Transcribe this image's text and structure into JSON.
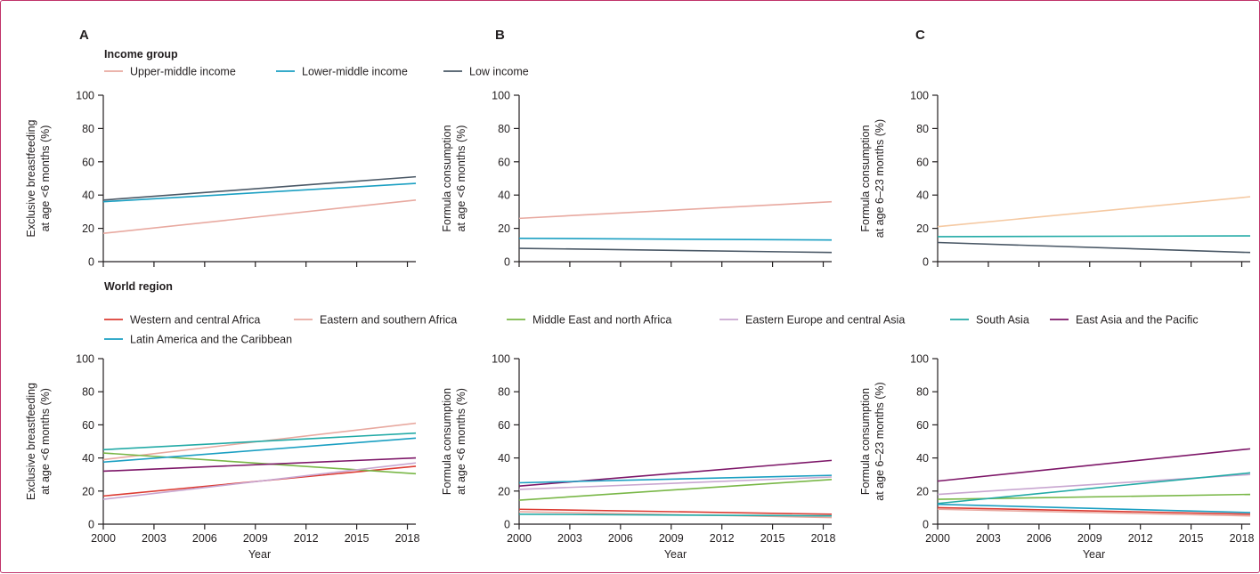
{
  "panel_letters": [
    "A",
    "B",
    "C"
  ],
  "legends": {
    "income": {
      "title": "Income group",
      "items": [
        {
          "label": "Upper-middle income",
          "color": "#e8a9a0"
        },
        {
          "label": "Lower-middle income",
          "color": "#1a9fc2"
        },
        {
          "label": "Low income",
          "color": "#4a5866"
        }
      ]
    },
    "region": {
      "title": "World region",
      "items": [
        {
          "label": "Western and central Africa",
          "color": "#dc3b32"
        },
        {
          "label": "Eastern and southern Africa",
          "color": "#e8a9a0"
        },
        {
          "label": "Middle East and north Africa",
          "color": "#79b747"
        },
        {
          "label": "Eastern Europe and central Asia",
          "color": "#c8a6d0"
        },
        {
          "label": "South Asia",
          "color": "#22aaa6"
        },
        {
          "label": "East Asia and the Pacific",
          "color": "#7d1668"
        },
        {
          "label": "Latin America and the Caribbean",
          "color": "#1a9fc2"
        }
      ]
    }
  },
  "chart_data": [
    {
      "type": "line",
      "panel": "A",
      "row": "income",
      "ylabel": [
        "Exclusive breastfeeding",
        "at age <6 months (%)"
      ],
      "xlabel": "",
      "x": [
        2000,
        2018.5
      ],
      "ylim": [
        0,
        100
      ],
      "yticks": [
        0,
        20,
        40,
        60,
        80,
        100
      ],
      "xticks": [
        2000,
        2003,
        2006,
        2009,
        2012,
        2015,
        2018
      ],
      "show_xtick_labels": false,
      "series": [
        {
          "name": "Upper-middle income",
          "color": "#e8a9a0",
          "values": [
            17,
            37
          ]
        },
        {
          "name": "Lower-middle income",
          "color": "#1a9fc2",
          "values": [
            36,
            47
          ]
        },
        {
          "name": "Low income",
          "color": "#4a5866",
          "values": [
            37,
            51
          ]
        }
      ]
    },
    {
      "type": "line",
      "panel": "B",
      "row": "income",
      "ylabel": [
        "Formula consumption",
        "at age <6 months (%)"
      ],
      "xlabel": "",
      "x": [
        2000,
        2018.5
      ],
      "ylim": [
        0,
        100
      ],
      "yticks": [
        0,
        20,
        40,
        60,
        80,
        100
      ],
      "xticks": [
        2000,
        2003,
        2006,
        2009,
        2012,
        2015,
        2018
      ],
      "show_xtick_labels": false,
      "series": [
        {
          "name": "Upper-middle income",
          "color": "#e8a9a0",
          "values": [
            26,
            36
          ]
        },
        {
          "name": "Lower-middle income",
          "color": "#1a9fc2",
          "values": [
            14,
            13
          ]
        },
        {
          "name": "Low income",
          "color": "#4a5866",
          "values": [
            8,
            5.5
          ]
        }
      ]
    },
    {
      "type": "line",
      "panel": "C",
      "row": "income",
      "ylabel": [
        "Formula consumption",
        "at age 6–23 months (%)"
      ],
      "xlabel": "",
      "x": [
        2000,
        2018.5
      ],
      "ylim": [
        0,
        100
      ],
      "yticks": [
        0,
        20,
        40,
        60,
        80,
        100
      ],
      "xticks": [
        2000,
        2003,
        2006,
        2009,
        2012,
        2015,
        2018
      ],
      "show_xtick_labels": false,
      "series": [
        {
          "name": "Upper-middle income",
          "color": "#f5c9a2",
          "values": [
            21,
            39
          ]
        },
        {
          "name": "Lower-middle income",
          "color": "#22aaa6",
          "values": [
            15,
            15.5
          ]
        },
        {
          "name": "Low income",
          "color": "#4a5866",
          "values": [
            11.5,
            5.5
          ]
        }
      ]
    },
    {
      "type": "line",
      "panel": "A",
      "row": "region",
      "ylabel": [
        "Exclusive breastfeeding",
        "at age <6 months (%)"
      ],
      "xlabel": "Year",
      "x": [
        2000,
        2018.5
      ],
      "ylim": [
        0,
        100
      ],
      "yticks": [
        0,
        20,
        40,
        60,
        80,
        100
      ],
      "xticks": [
        2000,
        2003,
        2006,
        2009,
        2012,
        2015,
        2018
      ],
      "show_xtick_labels": true,
      "series": [
        {
          "name": "Western and central Africa",
          "color": "#dc3b32",
          "values": [
            17,
            35
          ]
        },
        {
          "name": "Eastern and southern Africa",
          "color": "#e8a9a0",
          "values": [
            39,
            61
          ]
        },
        {
          "name": "Middle East and north Africa",
          "color": "#79b747",
          "values": [
            43,
            30.5
          ]
        },
        {
          "name": "Eastern Europe and central Asia",
          "color": "#c8a6d0",
          "values": [
            15,
            37
          ]
        },
        {
          "name": "South Asia",
          "color": "#22aaa6",
          "values": [
            45,
            55
          ]
        },
        {
          "name": "East Asia and the Pacific",
          "color": "#7d1668",
          "values": [
            32,
            40
          ]
        },
        {
          "name": "Latin America and the Caribbean",
          "color": "#1a9fc2",
          "values": [
            37.5,
            52
          ]
        }
      ]
    },
    {
      "type": "line",
      "panel": "B",
      "row": "region",
      "ylabel": [
        "Formula consumption",
        "at age <6 months (%)"
      ],
      "xlabel": "Year",
      "x": [
        2000,
        2018.5
      ],
      "ylim": [
        0,
        100
      ],
      "yticks": [
        0,
        20,
        40,
        60,
        80,
        100
      ],
      "xticks": [
        2000,
        2003,
        2006,
        2009,
        2012,
        2015,
        2018
      ],
      "show_xtick_labels": true,
      "series": [
        {
          "name": "Western and central Africa",
          "color": "#dc3b32",
          "values": [
            9,
            6
          ]
        },
        {
          "name": "Eastern and southern Africa",
          "color": "#e8a9a0",
          "values": [
            7.5,
            4
          ]
        },
        {
          "name": "Middle East and north Africa",
          "color": "#79b747",
          "values": [
            14.5,
            27
          ]
        },
        {
          "name": "Eastern Europe and central Asia",
          "color": "#c8a6d0",
          "values": [
            21,
            28.5
          ]
        },
        {
          "name": "South Asia",
          "color": "#22aaa6",
          "values": [
            6,
            5
          ]
        },
        {
          "name": "East Asia and the Pacific",
          "color": "#7d1668",
          "values": [
            23,
            38.5
          ]
        },
        {
          "name": "Latin America and the Caribbean",
          "color": "#1a9fc2",
          "values": [
            25,
            29.5
          ]
        }
      ]
    },
    {
      "type": "line",
      "panel": "C",
      "row": "region",
      "ylabel": [
        "Formula consumption",
        "at age 6–23 months (%)"
      ],
      "xlabel": "Year",
      "x": [
        2000,
        2018.5
      ],
      "ylim": [
        0,
        100
      ],
      "yticks": [
        0,
        20,
        40,
        60,
        80,
        100
      ],
      "xticks": [
        2000,
        2003,
        2006,
        2009,
        2012,
        2015,
        2018
      ],
      "show_xtick_labels": true,
      "series": [
        {
          "name": "Western and central Africa",
          "color": "#dc3b32",
          "values": [
            10,
            6
          ]
        },
        {
          "name": "Eastern and southern Africa",
          "color": "#e8a9a0",
          "values": [
            9,
            5
          ]
        },
        {
          "name": "Middle East and north Africa",
          "color": "#79b747",
          "values": [
            15,
            18
          ]
        },
        {
          "name": "Eastern Europe and central Asia",
          "color": "#c8a6d0",
          "values": [
            18,
            30
          ]
        },
        {
          "name": "South Asia",
          "color": "#22aaa6",
          "values": [
            12.5,
            31
          ]
        },
        {
          "name": "East Asia and the Pacific",
          "color": "#7d1668",
          "values": [
            26,
            45.5
          ]
        },
        {
          "name": "Latin America and the Caribbean",
          "color": "#1a9fc2",
          "values": [
            12,
            7
          ]
        }
      ]
    }
  ]
}
